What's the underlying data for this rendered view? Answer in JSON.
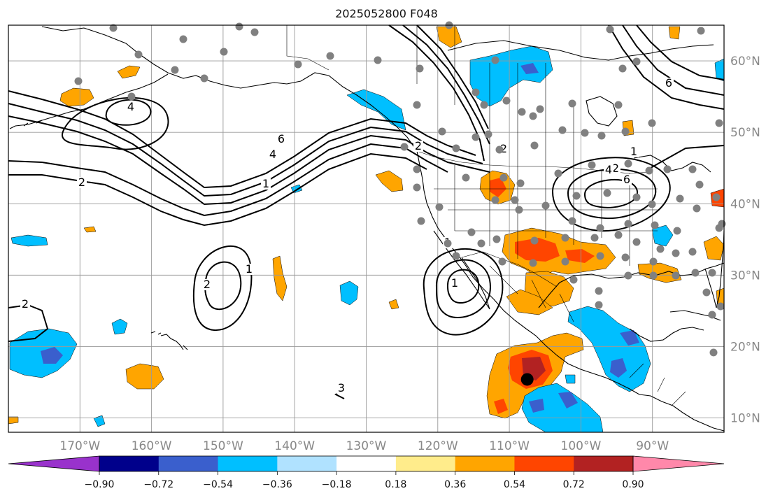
{
  "title": "2025052800 F048",
  "map": {
    "projection": "plate-carree",
    "lon_range": [
      -180,
      -80
    ],
    "lat_range": [
      8,
      65
    ],
    "lon_ticks": [
      {
        "lon": -170,
        "label": "170°W"
      },
      {
        "lon": -160,
        "label": "160°W"
      },
      {
        "lon": -150,
        "label": "150°W"
      },
      {
        "lon": -140,
        "label": "140°W"
      },
      {
        "lon": -130,
        "label": "130°W"
      },
      {
        "lon": -120,
        "label": "120°W"
      },
      {
        "lon": -110,
        "label": "110°W"
      },
      {
        "lon": -100,
        "label": "100°W"
      },
      {
        "lon": -90,
        "label": "90°W"
      }
    ],
    "lat_ticks": [
      {
        "lat": 60,
        "label": "60°N"
      },
      {
        "lat": 50,
        "label": "50°N"
      },
      {
        "lat": 40,
        "label": "40°N"
      },
      {
        "lat": 30,
        "label": "30°N"
      },
      {
        "lat": 20,
        "label": "20°N"
      },
      {
        "lat": 10,
        "label": "10°N"
      }
    ],
    "grid": true,
    "coastlines": true,
    "borders": true,
    "contour_labels": [
      "4",
      "2",
      "1",
      "6",
      "4",
      "2",
      "1",
      "2",
      "1",
      "1",
      "2",
      "1",
      "2",
      "4",
      "6",
      "2",
      "6",
      "3"
    ],
    "station_marker": {
      "color": "#808080"
    },
    "highlight_marker": {
      "lon": -107.5,
      "lat": 15.4,
      "color": "#000000"
    }
  },
  "colorbar": {
    "extend": "both",
    "levels": [
      "−0.90",
      "−0.72",
      "−0.54",
      "−0.36",
      "−0.18",
      "0.18",
      "0.36",
      "0.54",
      "0.72",
      "0.90"
    ],
    "colors": [
      "#9932CC",
      "#00008B",
      "#3A5FCD",
      "#00BFFF",
      "#B0E2FF",
      "#FFFFFF",
      "#FFEC8B",
      "#FFA500",
      "#FF4500",
      "#B22222",
      "#FF88AA"
    ]
  }
}
